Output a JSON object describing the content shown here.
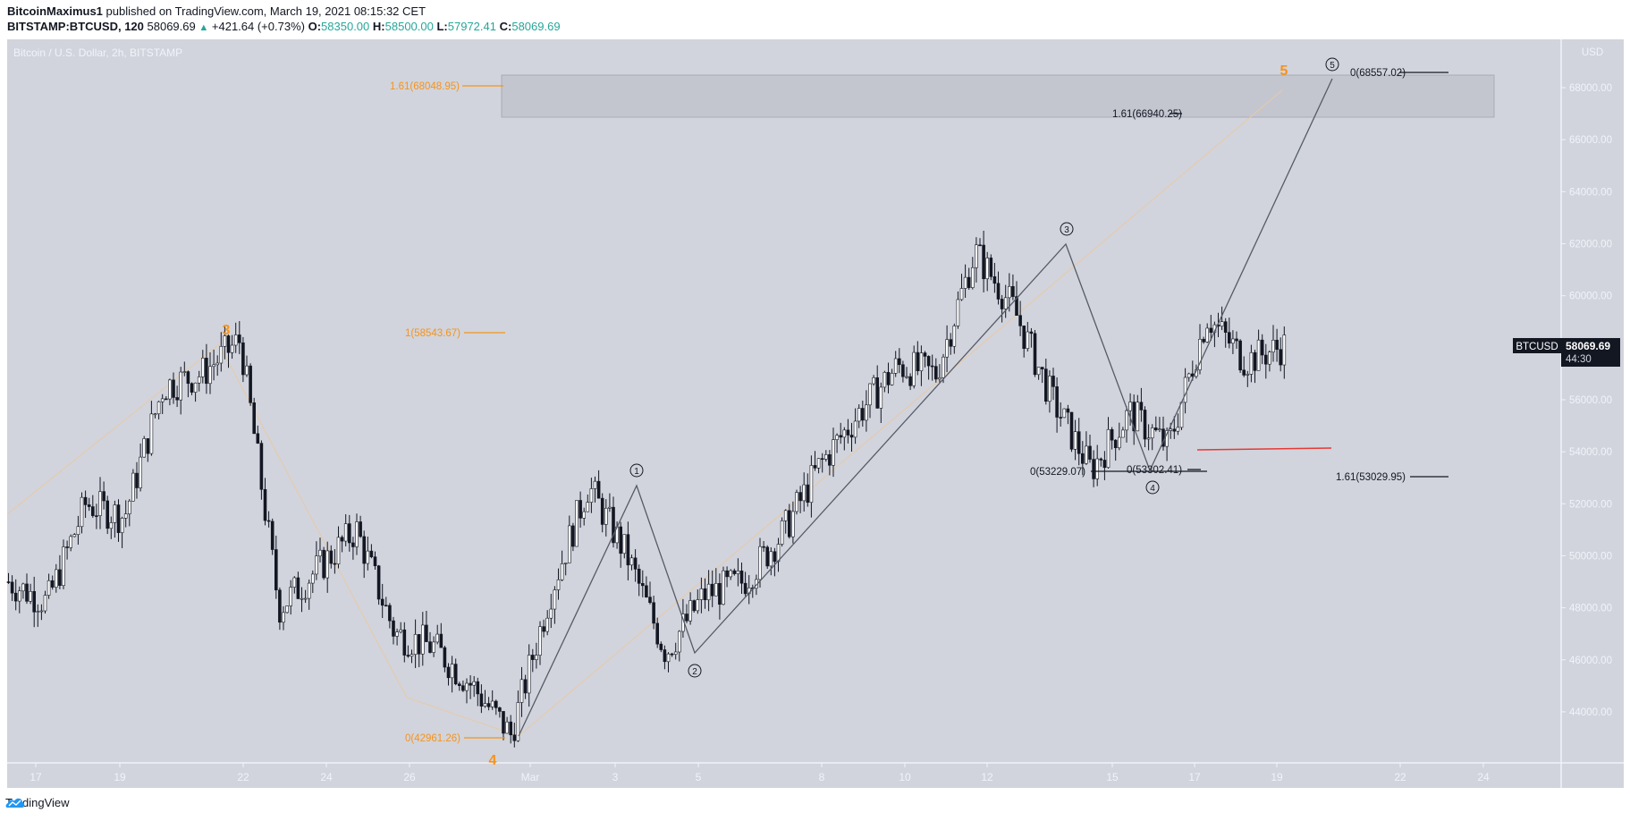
{
  "header": {
    "author": "BitcoinMaximus1",
    "published_text": "published on TradingView.com, March 19, 2021 08:15:32 CET",
    "symbol": "BITSTAMP:BTCUSD, 120",
    "last": "58069.69",
    "change": "+421.64 (+0.73%)",
    "o_label": "O:",
    "o": "58350.00",
    "h_label": "H:",
    "h": "58500.00",
    "l_label": "L:",
    "l": "57972.41",
    "c_label": "C:",
    "c": "58069.69"
  },
  "chart_legend": "Bitcoin / U.S. Dollar, 2h, BITSTAMP",
  "price_axis": {
    "currency": "USD",
    "ticks": [
      "68000.00",
      "66000.00",
      "64000.00",
      "62000.00",
      "60000.00",
      "58000.00",
      "56000.00",
      "54000.00",
      "52000.00",
      "50000.00",
      "48000.00",
      "46000.00",
      "44000.00"
    ],
    "last_label": "BTCUSD",
    "last_price": "58069.69",
    "countdown": "44:30"
  },
  "time_axis": {
    "ticks": [
      "17",
      "19",
      "22",
      "24",
      "26",
      "Mar",
      "3",
      "5",
      "8",
      "10",
      "12",
      "15",
      "17",
      "19",
      "22",
      "24"
    ]
  },
  "annotations": {
    "fib_orange": [
      "1.61(68048.95)",
      "1(58543.67)",
      "0(42961.26)"
    ],
    "fib_black": [
      "0(68557.02)",
      "1.61(66940.25)",
      "0(53229.07)",
      "0(53302.41)",
      "1.61(53029.95)"
    ],
    "orange_waves": [
      "3",
      "4",
      "5"
    ],
    "circled_waves": [
      "1",
      "2",
      "3",
      "4",
      "5"
    ],
    "circled_glyphs": [
      "①",
      "②",
      "③",
      "④",
      "⑤"
    ],
    "support_line_color": "#e53935",
    "target_box": {
      "from": 66940.25,
      "to": 68557.02
    }
  },
  "colors": {
    "orange": "#f7931a",
    "green": "#26a69a",
    "bg": "#d1d4dc",
    "candle_up": "#ffffff",
    "candle_down": "#131722"
  },
  "footer": {
    "brand": "TradingView"
  },
  "chart_data": {
    "type": "candlestick",
    "title": "Bitcoin / U.S. Dollar, 2h, BITSTAMP",
    "xlabel": "",
    "ylabel": "USD",
    "ylim": [
      42000,
      69000
    ],
    "x_ticks": [
      "Feb 17",
      "Feb 19",
      "Feb 22",
      "Feb 24",
      "Feb 26",
      "Mar 1",
      "Mar 3",
      "Mar 5",
      "Mar 8",
      "Mar 10",
      "Mar 12",
      "Mar 15",
      "Mar 17",
      "Mar 19",
      "Mar 22",
      "Mar 24"
    ],
    "price_path": [
      {
        "date": "Feb 16",
        "price": 49000
      },
      {
        "date": "Feb 17",
        "price": 48200
      },
      {
        "date": "Feb 18",
        "price": 52000
      },
      {
        "date": "Feb 19",
        "price": 51500
      },
      {
        "date": "Feb 20",
        "price": 56500
      },
      {
        "date": "Feb 21",
        "price": 57000
      },
      {
        "date": "Feb 22",
        "price": 58300
      },
      {
        "date": "Feb 23",
        "price": 48000
      },
      {
        "date": "Feb 24",
        "price": 49500
      },
      {
        "date": "Feb 25",
        "price": 51000
      },
      {
        "date": "Feb 26",
        "price": 47000
      },
      {
        "date": "Feb 27",
        "price": 46500
      },
      {
        "date": "Feb 28",
        "price": 45000
      },
      {
        "date": "Mar 1",
        "price": 43100
      },
      {
        "date": "Mar 2",
        "price": 48500
      },
      {
        "date": "Mar 3",
        "price": 52700
      },
      {
        "date": "Mar 4",
        "price": 50000
      },
      {
        "date": "Mar 5",
        "price": 46300
      },
      {
        "date": "Mar 6",
        "price": 48500
      },
      {
        "date": "Mar 7",
        "price": 49000
      },
      {
        "date": "Mar 8",
        "price": 50800
      },
      {
        "date": "Mar 9",
        "price": 53500
      },
      {
        "date": "Mar 10",
        "price": 55500
      },
      {
        "date": "Mar 11",
        "price": 57300
      },
      {
        "date": "Mar 12",
        "price": 57000
      },
      {
        "date": "Mar 13",
        "price": 61700
      },
      {
        "date": "Mar 14",
        "price": 59500
      },
      {
        "date": "Mar 15",
        "price": 56000
      },
      {
        "date": "Mar 16",
        "price": 53300
      },
      {
        "date": "Mar 17",
        "price": 55500
      },
      {
        "date": "Mar 17b",
        "price": 54200
      },
      {
        "date": "Mar 18",
        "price": 59200
      },
      {
        "date": "Mar 18b",
        "price": 57500
      },
      {
        "date": "Mar 19",
        "price": 58069.69
      }
    ],
    "wave_count": [
      {
        "label": "0",
        "price": 43100
      },
      {
        "label": "1",
        "price": 52700
      },
      {
        "label": "2",
        "price": 46300
      },
      {
        "label": "3",
        "price": 61800
      },
      {
        "label": "4",
        "price": 53300
      },
      {
        "label": "5",
        "price": 68557.02
      }
    ],
    "fibonacci_levels": [
      {
        "label": "1.61",
        "price": 68048.95,
        "color": "orange"
      },
      {
        "label": "1",
        "price": 58543.67,
        "color": "orange"
      },
      {
        "label": "0",
        "price": 42961.26,
        "color": "orange"
      },
      {
        "label": "0",
        "price": 68557.02,
        "color": "black"
      },
      {
        "label": "1.61",
        "price": 66940.25,
        "color": "black"
      },
      {
        "label": "0",
        "price": 53229.07,
        "color": "black"
      },
      {
        "label": "0",
        "price": 53302.41,
        "color": "black"
      },
      {
        "label": "1.61",
        "price": 53029.95,
        "color": "black"
      }
    ],
    "horizontal_support": 54100,
    "last_price": 58069.69,
    "grid": false,
    "legend_position": "top-left"
  }
}
